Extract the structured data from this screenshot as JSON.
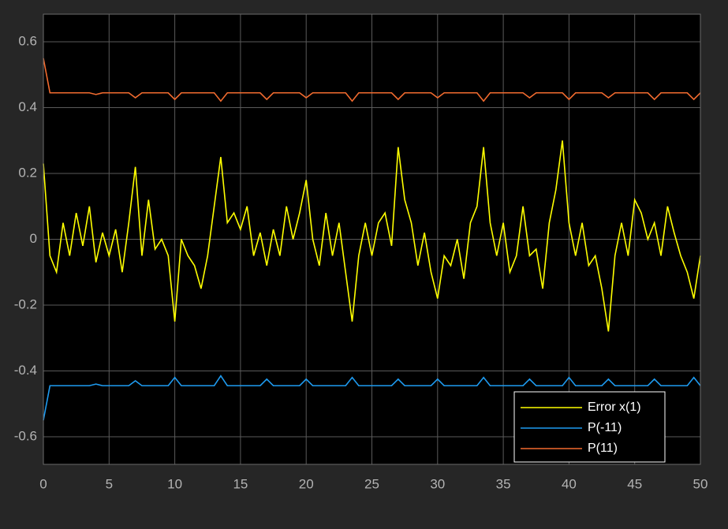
{
  "chart_data": {
    "type": "line",
    "x": [
      0,
      0.5,
      1,
      1.5,
      2,
      2.5,
      3,
      3.5,
      4,
      4.5,
      5,
      5.5,
      6,
      6.5,
      7,
      7.5,
      8,
      8.5,
      9,
      9.5,
      10,
      10.5,
      11,
      11.5,
      12,
      12.5,
      13,
      13.5,
      14,
      14.5,
      15,
      15.5,
      16,
      16.5,
      17,
      17.5,
      18,
      18.5,
      19,
      19.5,
      20,
      20.5,
      21,
      21.5,
      22,
      22.5,
      23,
      23.5,
      24,
      24.5,
      25,
      25.5,
      26,
      26.5,
      27,
      27.5,
      28,
      28.5,
      29,
      29.5,
      30,
      30.5,
      31,
      31.5,
      32,
      32.5,
      33,
      33.5,
      34,
      34.5,
      35,
      35.5,
      36,
      36.5,
      37,
      37.5,
      38,
      38.5,
      39,
      39.5,
      40,
      40.5,
      41,
      41.5,
      42,
      42.5,
      43,
      43.5,
      44,
      44.5,
      45,
      45.5,
      46,
      46.5,
      47,
      47.5,
      48,
      48.5,
      49,
      49.5,
      50
    ],
    "series": [
      {
        "name": "Error x(1)",
        "color": "#ffff00",
        "values": [
          0.23,
          -0.05,
          -0.1,
          0.05,
          -0.05,
          0.08,
          -0.02,
          0.1,
          -0.07,
          0.02,
          -0.05,
          0.03,
          -0.1,
          0.05,
          0.22,
          -0.05,
          0.12,
          -0.03,
          0.0,
          -0.05,
          -0.25,
          0.0,
          -0.05,
          -0.08,
          -0.15,
          -0.05,
          0.1,
          0.25,
          0.05,
          0.08,
          0.03,
          0.1,
          -0.05,
          0.02,
          -0.08,
          0.03,
          -0.05,
          0.1,
          0.0,
          0.08,
          0.18,
          0.0,
          -0.08,
          0.08,
          -0.05,
          0.05,
          -0.1,
          -0.25,
          -0.05,
          0.05,
          -0.05,
          0.05,
          0.08,
          -0.02,
          0.28,
          0.12,
          0.05,
          -0.08,
          0.02,
          -0.1,
          -0.18,
          -0.05,
          -0.08,
          0.0,
          -0.12,
          0.05,
          0.1,
          0.28,
          0.05,
          -0.05,
          0.05,
          -0.1,
          -0.05,
          0.1,
          -0.05,
          -0.03,
          -0.15,
          0.05,
          0.15,
          0.3,
          0.05,
          -0.05,
          0.05,
          -0.08,
          -0.05,
          -0.15,
          -0.28,
          -0.05,
          0.05,
          -0.05,
          0.12,
          0.08,
          0.0,
          0.05,
          -0.05,
          0.1,
          0.02,
          -0.05,
          -0.1,
          -0.18,
          -0.05
        ]
      },
      {
        "name": "P(-11)",
        "color": "#1e9bf0",
        "values": [
          -0.55,
          -0.445,
          -0.445,
          -0.445,
          -0.445,
          -0.445,
          -0.445,
          -0.445,
          -0.44,
          -0.445,
          -0.445,
          -0.445,
          -0.445,
          -0.445,
          -0.43,
          -0.445,
          -0.445,
          -0.445,
          -0.445,
          -0.445,
          -0.42,
          -0.445,
          -0.445,
          -0.445,
          -0.445,
          -0.445,
          -0.445,
          -0.415,
          -0.445,
          -0.445,
          -0.445,
          -0.445,
          -0.445,
          -0.445,
          -0.425,
          -0.445,
          -0.445,
          -0.445,
          -0.445,
          -0.445,
          -0.425,
          -0.445,
          -0.445,
          -0.445,
          -0.445,
          -0.445,
          -0.445,
          -0.42,
          -0.445,
          -0.445,
          -0.445,
          -0.445,
          -0.445,
          -0.445,
          -0.425,
          -0.445,
          -0.445,
          -0.445,
          -0.445,
          -0.445,
          -0.425,
          -0.445,
          -0.445,
          -0.445,
          -0.445,
          -0.445,
          -0.445,
          -0.42,
          -0.445,
          -0.445,
          -0.445,
          -0.445,
          -0.445,
          -0.445,
          -0.425,
          -0.445,
          -0.445,
          -0.445,
          -0.445,
          -0.445,
          -0.42,
          -0.445,
          -0.445,
          -0.445,
          -0.445,
          -0.445,
          -0.425,
          -0.445,
          -0.445,
          -0.445,
          -0.445,
          -0.445,
          -0.445,
          -0.425,
          -0.445,
          -0.445,
          -0.445,
          -0.445,
          -0.445,
          -0.42,
          -0.445
        ]
      },
      {
        "name": "P(11)",
        "color": "#f26b2f",
        "values": [
          0.55,
          0.445,
          0.445,
          0.445,
          0.445,
          0.445,
          0.445,
          0.445,
          0.44,
          0.445,
          0.445,
          0.445,
          0.445,
          0.445,
          0.43,
          0.445,
          0.445,
          0.445,
          0.445,
          0.445,
          0.425,
          0.445,
          0.445,
          0.445,
          0.445,
          0.445,
          0.445,
          0.42,
          0.445,
          0.445,
          0.445,
          0.445,
          0.445,
          0.445,
          0.425,
          0.445,
          0.445,
          0.445,
          0.445,
          0.445,
          0.43,
          0.445,
          0.445,
          0.445,
          0.445,
          0.445,
          0.445,
          0.42,
          0.445,
          0.445,
          0.445,
          0.445,
          0.445,
          0.445,
          0.425,
          0.445,
          0.445,
          0.445,
          0.445,
          0.445,
          0.43,
          0.445,
          0.445,
          0.445,
          0.445,
          0.445,
          0.445,
          0.42,
          0.445,
          0.445,
          0.445,
          0.445,
          0.445,
          0.445,
          0.43,
          0.445,
          0.445,
          0.445,
          0.445,
          0.445,
          0.425,
          0.445,
          0.445,
          0.445,
          0.445,
          0.445,
          0.43,
          0.445,
          0.445,
          0.445,
          0.445,
          0.445,
          0.445,
          0.425,
          0.445,
          0.445,
          0.445,
          0.445,
          0.445,
          0.425,
          0.445
        ]
      }
    ],
    "xlim": [
      0,
      50
    ],
    "ylim": [
      -0.684,
      0.684
    ],
    "xticks": [
      0,
      5,
      10,
      15,
      20,
      25,
      30,
      35,
      40,
      45,
      50
    ],
    "yticks": [
      -0.6,
      -0.4,
      -0.2,
      0,
      0.2,
      0.4,
      0.6
    ],
    "grid": true,
    "legend": "southeast"
  }
}
